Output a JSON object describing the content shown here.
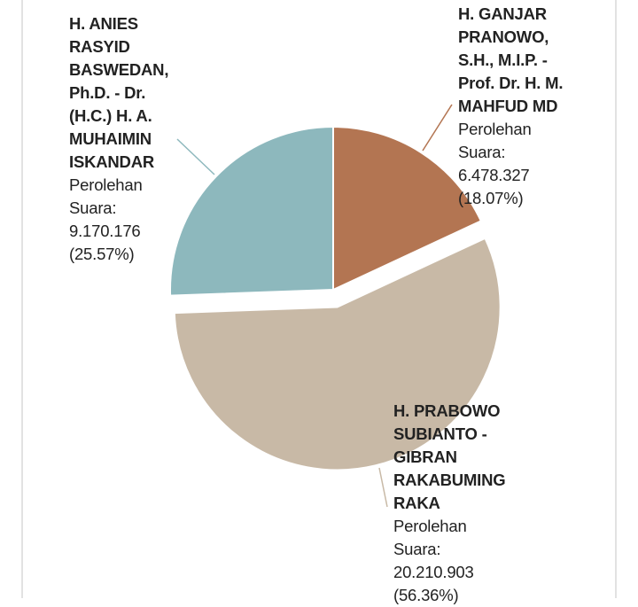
{
  "chart_data": {
    "type": "pie",
    "categories": [
      "H. ANIES RASYID BASWEDAN, Ph.D. - Dr. (H.C.) H. A. MUHAIMIN ISKANDAR",
      "H. GANJAR PRANOWO, S.H., M.I.P. - Prof. Dr. H. M. MAHFUD MD",
      "H. PRABOWO SUBIANTO - GIBRAN RAKABUMING RAKA"
    ],
    "values": [
      9170176,
      6478327,
      20210903
    ],
    "value_labels": [
      "9.170.176",
      "6.478.327",
      "20.210.903"
    ],
    "value_prefix": "Perolehan Suara:",
    "percentages": [
      25.57,
      18.07,
      56.36
    ],
    "percentage_labels": [
      "(25.57%)",
      "(18.07%)",
      "(56.36%)"
    ],
    "colors": [
      "#8db8bd",
      "#b37552",
      "#c8b9a6"
    ]
  }
}
